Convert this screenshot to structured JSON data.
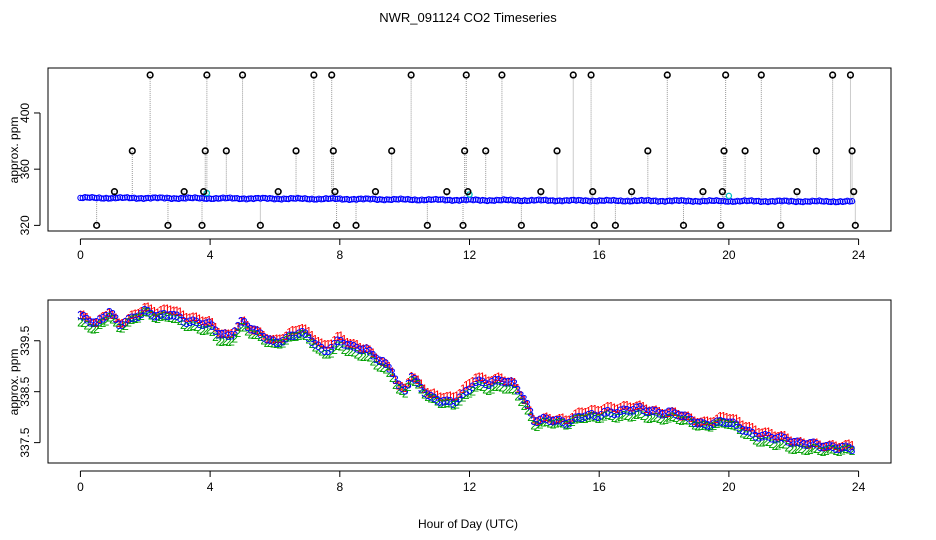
{
  "chart_data": {
    "title": "NWR_091124  CO2 Timeseries",
    "xlabel": "Hour of Day (UTC)",
    "colors": {
      "raw": "#0000ff",
      "fill": "#00bfbf",
      "outlier": "#000000",
      "series1": "#ff0000",
      "series2": "#00a000",
      "series3": "#0000ff"
    },
    "panels": [
      {
        "type": "scatter",
        "ylabel": "approx. ppm",
        "xlim": [
          -1,
          25
        ],
        "ylim": [
          316,
          432
        ],
        "xticks": [
          0,
          4,
          8,
          12,
          16,
          20,
          24
        ],
        "yticks": [
          320,
          360,
          400
        ],
        "dense_band": [
          [
            0,
            339.6
          ],
          [
            4,
            339.3
          ],
          [
            8,
            338.8
          ],
          [
            12,
            338.0
          ],
          [
            16,
            337.6
          ],
          [
            20,
            337.3
          ],
          [
            23.8,
            337.0
          ]
        ],
        "outliers": [
          {
            "x": 0.5,
            "y": 320
          },
          {
            "x": 1.05,
            "y": 344
          },
          {
            "x": 1.6,
            "y": 373
          },
          {
            "x": 2.15,
            "y": 427
          },
          {
            "x": 2.7,
            "y": 320
          },
          {
            "x": 3.2,
            "y": 344
          },
          {
            "x": 3.75,
            "y": 320
          },
          {
            "x": 3.8,
            "y": 344
          },
          {
            "x": 3.85,
            "y": 373
          },
          {
            "x": 3.9,
            "y": 427
          },
          {
            "x": 4.5,
            "y": 373
          },
          {
            "x": 5.0,
            "y": 427
          },
          {
            "x": 5.55,
            "y": 320
          },
          {
            "x": 6.1,
            "y": 344
          },
          {
            "x": 6.65,
            "y": 373
          },
          {
            "x": 7.2,
            "y": 427
          },
          {
            "x": 7.75,
            "y": 427
          },
          {
            "x": 7.8,
            "y": 373
          },
          {
            "x": 7.85,
            "y": 344
          },
          {
            "x": 7.9,
            "y": 320
          },
          {
            "x": 8.5,
            "y": 320
          },
          {
            "x": 9.1,
            "y": 344
          },
          {
            "x": 9.6,
            "y": 373
          },
          {
            "x": 10.2,
            "y": 427
          },
          {
            "x": 10.7,
            "y": 320
          },
          {
            "x": 11.3,
            "y": 344
          },
          {
            "x": 11.8,
            "y": 320
          },
          {
            "x": 11.85,
            "y": 373
          },
          {
            "x": 11.9,
            "y": 427
          },
          {
            "x": 11.95,
            "y": 344
          },
          {
            "x": 12.5,
            "y": 373
          },
          {
            "x": 13.0,
            "y": 427
          },
          {
            "x": 13.6,
            "y": 320
          },
          {
            "x": 14.2,
            "y": 344
          },
          {
            "x": 14.7,
            "y": 373
          },
          {
            "x": 15.2,
            "y": 427
          },
          {
            "x": 15.75,
            "y": 427
          },
          {
            "x": 15.8,
            "y": 344
          },
          {
            "x": 15.85,
            "y": 320
          },
          {
            "x": 16.5,
            "y": 320
          },
          {
            "x": 17.0,
            "y": 344
          },
          {
            "x": 17.5,
            "y": 373
          },
          {
            "x": 18.1,
            "y": 427
          },
          {
            "x": 18.6,
            "y": 320
          },
          {
            "x": 19.2,
            "y": 344
          },
          {
            "x": 19.75,
            "y": 320
          },
          {
            "x": 19.8,
            "y": 344
          },
          {
            "x": 19.85,
            "y": 373
          },
          {
            "x": 19.9,
            "y": 427
          },
          {
            "x": 20.5,
            "y": 373
          },
          {
            "x": 21.0,
            "y": 427
          },
          {
            "x": 21.6,
            "y": 320
          },
          {
            "x": 22.1,
            "y": 344
          },
          {
            "x": 22.7,
            "y": 373
          },
          {
            "x": 23.2,
            "y": 427
          },
          {
            "x": 23.75,
            "y": 427
          },
          {
            "x": 23.8,
            "y": 373
          },
          {
            "x": 23.85,
            "y": 344
          },
          {
            "x": 23.9,
            "y": 320
          }
        ],
        "cyan_points": [
          {
            "x": 3.9,
            "y": 343
          },
          {
            "x": 12.0,
            "y": 342
          },
          {
            "x": 20.0,
            "y": 341
          }
        ]
      },
      {
        "type": "scatter",
        "ylabel": "approx. ppm",
        "xlim": [
          -1,
          25
        ],
        "ylim": [
          337.1,
          340.3
        ],
        "xticks": [
          0,
          4,
          8,
          12,
          16,
          20,
          24
        ],
        "yticks": [
          337.5,
          338.5,
          339.5
        ],
        "series_labels": [
          "1",
          "2",
          "3"
        ],
        "trend": [
          [
            0,
            339.95
          ],
          [
            0.5,
            339.8
          ],
          [
            0.9,
            340.05
          ],
          [
            1.2,
            339.8
          ],
          [
            1.5,
            339.9
          ],
          [
            2.0,
            340.1
          ],
          [
            2.4,
            340.0
          ],
          [
            2.8,
            340.05
          ],
          [
            3.2,
            339.9
          ],
          [
            3.6,
            339.85
          ],
          [
            4.0,
            339.8
          ],
          [
            4.3,
            339.6
          ],
          [
            4.6,
            339.55
          ],
          [
            5.0,
            339.85
          ],
          [
            5.3,
            339.7
          ],
          [
            5.6,
            339.6
          ],
          [
            6.0,
            339.45
          ],
          [
            6.5,
            339.6
          ],
          [
            6.8,
            339.7
          ],
          [
            7.2,
            339.5
          ],
          [
            7.5,
            339.3
          ],
          [
            7.8,
            339.4
          ],
          [
            8.0,
            339.5
          ],
          [
            8.4,
            339.35
          ],
          [
            8.8,
            339.3
          ],
          [
            9.2,
            339.1
          ],
          [
            9.6,
            338.9
          ],
          [
            9.8,
            338.6
          ],
          [
            10.0,
            338.5
          ],
          [
            10.2,
            338.8
          ],
          [
            10.5,
            338.6
          ],
          [
            10.8,
            338.4
          ],
          [
            11.1,
            338.35
          ],
          [
            11.5,
            338.3
          ],
          [
            11.9,
            338.5
          ],
          [
            12.2,
            338.7
          ],
          [
            12.6,
            338.65
          ],
          [
            13.0,
            338.7
          ],
          [
            13.4,
            338.6
          ],
          [
            13.7,
            338.3
          ],
          [
            14.0,
            337.9
          ],
          [
            14.4,
            337.95
          ],
          [
            15.0,
            337.9
          ],
          [
            15.5,
            338.05
          ],
          [
            15.9,
            338.05
          ],
          [
            16.2,
            338.1
          ],
          [
            16.6,
            338.1
          ],
          [
            17.2,
            338.15
          ],
          [
            17.8,
            338.05
          ],
          [
            18.4,
            338.05
          ],
          [
            18.8,
            337.95
          ],
          [
            19.2,
            337.85
          ],
          [
            19.6,
            337.9
          ],
          [
            19.95,
            337.95
          ],
          [
            20.4,
            337.8
          ],
          [
            20.8,
            337.65
          ],
          [
            21.2,
            337.6
          ],
          [
            21.7,
            337.55
          ],
          [
            22.1,
            337.45
          ],
          [
            22.5,
            337.45
          ],
          [
            23.0,
            337.4
          ],
          [
            23.4,
            337.4
          ],
          [
            23.8,
            337.4
          ]
        ]
      }
    ]
  }
}
